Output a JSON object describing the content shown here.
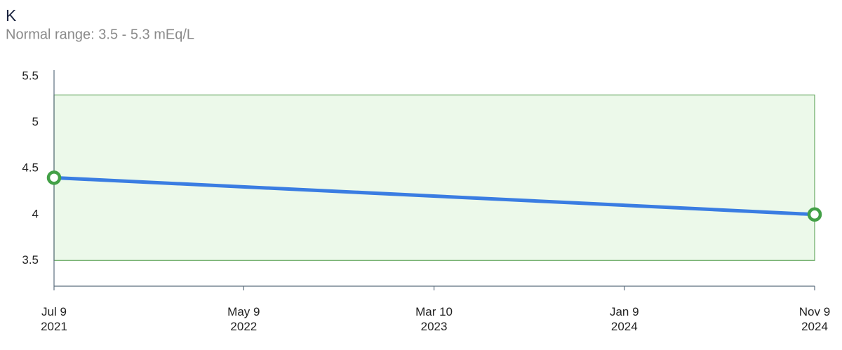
{
  "chart_data": {
    "type": "line",
    "title": "K",
    "subtitle": "Normal range: 3.5 - 5.3 mEq/L",
    "normal_range": [
      3.5,
      5.3
    ],
    "normal_range_color": "#ecf9ea",
    "normal_range_border": "#6aaa64",
    "series": [
      {
        "x": [
          "2021-07-09",
          "2024-11-09"
        ],
        "values": [
          4.4,
          4.0
        ],
        "color": "#3a7de2",
        "marker_color": "#43a047"
      }
    ],
    "xlim": [
      "2021-07-09",
      "2024-11-09"
    ],
    "xticks": [
      {
        "value": "2021-07-09",
        "label": [
          "Jul 9",
          "2021"
        ]
      },
      {
        "value": "2022-05-09",
        "label": [
          "May 9",
          "2022"
        ]
      },
      {
        "value": "2023-03-10",
        "label": [
          "Mar 10",
          "2023"
        ]
      },
      {
        "value": "2024-01-09",
        "label": [
          "Jan 9",
          "2024"
        ]
      },
      {
        "value": "2024-11-09",
        "label": [
          "Nov 9",
          "2024"
        ]
      }
    ],
    "ylim": [
      3.22,
      5.57
    ],
    "yticks": [
      3.5,
      4,
      4.5,
      5,
      5.5
    ],
    "grid": false
  }
}
